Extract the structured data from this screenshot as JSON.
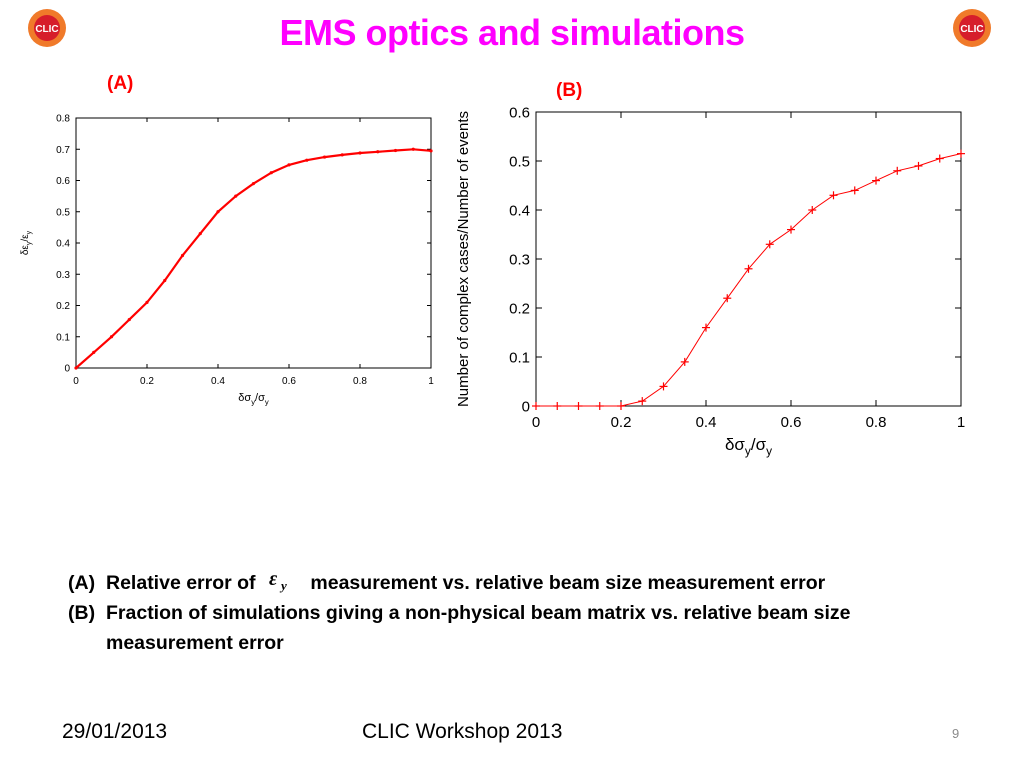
{
  "header": {
    "title": "EMS optics and simulations",
    "logo_text": "CLIC",
    "logo_colors": {
      "outer": "#f07a2a",
      "inner": "#d61d2b",
      "text": "#ffffff"
    }
  },
  "panels": {
    "a_label": "(A)",
    "b_label": "(B)"
  },
  "chart_data": [
    {
      "type": "line",
      "panel": "(A)",
      "title": "",
      "xlabel": "δσy/σy",
      "ylabel": "δεy/εy",
      "xlim": [
        0,
        1
      ],
      "ylim": [
        0,
        0.8
      ],
      "x_ticks": [
        0,
        0.2,
        0.4,
        0.6,
        0.8,
        1
      ],
      "x_tick_labels": [
        "0",
        "0.2",
        "0.4",
        "0.6",
        "0.8",
        "1"
      ],
      "y_ticks": [
        0,
        0.1,
        0.2,
        0.3,
        0.4,
        0.5,
        0.6,
        0.7,
        0.8
      ],
      "y_tick_labels": [
        "0",
        "0.1",
        "0.2",
        "0.3",
        "0.4",
        "0.5",
        "0.6",
        "0.7",
        "0.8"
      ],
      "grid": false,
      "color": "#ff0000",
      "series": [
        {
          "x": [
            0,
            0.05,
            0.1,
            0.15,
            0.2,
            0.25,
            0.3,
            0.35,
            0.4,
            0.45,
            0.5,
            0.55,
            0.6,
            0.65,
            0.7,
            0.75,
            0.8,
            0.85,
            0.9,
            0.95,
            1.0
          ],
          "values": [
            0,
            0.05,
            0.1,
            0.155,
            0.21,
            0.28,
            0.36,
            0.43,
            0.5,
            0.55,
            0.59,
            0.625,
            0.65,
            0.665,
            0.675,
            0.682,
            0.688,
            0.692,
            0.696,
            0.7,
            0.695
          ]
        }
      ]
    },
    {
      "type": "scatter",
      "panel": "(B)",
      "title": "",
      "xlabel": "δσy/σy",
      "ylabel": "Number of complex cases/Number of events",
      "xlim": [
        0,
        1
      ],
      "ylim": [
        0,
        0.6
      ],
      "x_ticks": [
        0,
        0.2,
        0.4,
        0.6,
        0.8,
        1
      ],
      "x_tick_labels": [
        "0",
        "0.2",
        "0.4",
        "0.6",
        "0.8",
        "1"
      ],
      "y_ticks": [
        0,
        0.1,
        0.2,
        0.3,
        0.4,
        0.5,
        0.6
      ],
      "y_tick_labels": [
        "0",
        "0.1",
        "0.2",
        "0.3",
        "0.4",
        "0.5",
        "0.6"
      ],
      "grid": false,
      "color": "#ff0000",
      "marker": "plus",
      "series": [
        {
          "x": [
            0,
            0.05,
            0.1,
            0.15,
            0.2,
            0.25,
            0.3,
            0.35,
            0.4,
            0.45,
            0.5,
            0.55,
            0.6,
            0.65,
            0.7,
            0.75,
            0.8,
            0.85,
            0.9,
            0.95,
            1.0
          ],
          "values": [
            0,
            0,
            0,
            0,
            0,
            0.01,
            0.04,
            0.09,
            0.16,
            0.22,
            0.28,
            0.33,
            0.36,
            0.4,
            0.43,
            0.44,
            0.46,
            0.48,
            0.49,
            0.505,
            0.515
          ]
        }
      ]
    }
  ],
  "caption": {
    "a_key": "(A)",
    "a_before": "Relative error of",
    "a_after": "measurement vs. relative beam size measurement error",
    "b_key": "(B)",
    "b_text": "Fraction  of simulations giving a non-physical beam matrix vs. relative beam size measurement error"
  },
  "footer": {
    "date": "29/01/2013",
    "event": "CLIC Workshop 2013",
    "page": "9"
  }
}
